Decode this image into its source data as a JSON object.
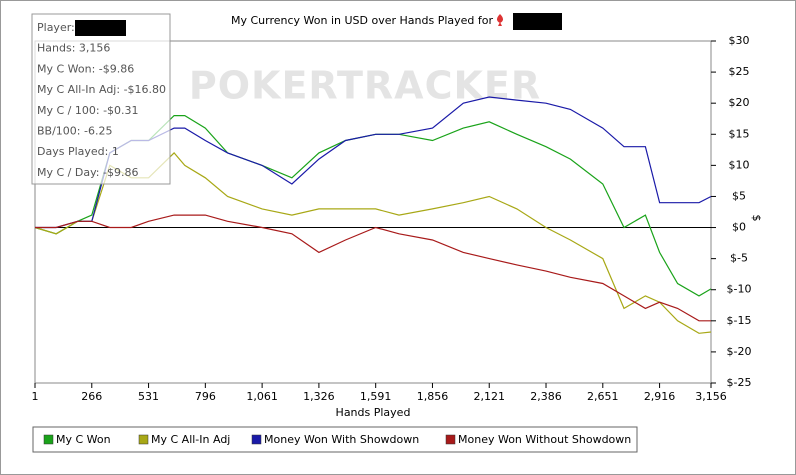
{
  "chart_data": {
    "type": "line",
    "title": "My Currency Won in USD over Hands Played for",
    "watermark": "POKERTRACKER",
    "x_label": "Hands Played",
    "y_label": "$",
    "info": [
      "Player:",
      "Hands: 3,156",
      "My C Won: -$9.86",
      "My C All-In Adj: -$16.80",
      "My C / 100: -$0.31",
      "BB/100: -6.25",
      "Days Played: 1",
      "My C / Day: -$9.86"
    ],
    "x": [
      1,
      100,
      200,
      266,
      350,
      450,
      531,
      650,
      700,
      796,
      900,
      1061,
      1200,
      1326,
      1450,
      1591,
      1700,
      1856,
      2000,
      2121,
      2250,
      2386,
      2500,
      2651,
      2750,
      2850,
      2916,
      3000,
      3100,
      3156
    ],
    "series": [
      {
        "name": "My C Won",
        "color": "#1aa31a",
        "values": [
          0,
          -1,
          1,
          2,
          12,
          14,
          14,
          18,
          18,
          16,
          12,
          10,
          8,
          12,
          14,
          15,
          15,
          14,
          16,
          17,
          15,
          13,
          11,
          7,
          0,
          2,
          -4,
          -9,
          -11,
          -9.86
        ]
      },
      {
        "name": "My C All-In Adj",
        "color": "#a8a816",
        "values": [
          0,
          -1,
          1,
          1,
          10,
          8,
          8,
          12,
          10,
          8,
          5,
          3,
          2,
          3,
          3,
          3,
          2,
          3,
          4,
          5,
          3,
          0,
          -2,
          -5,
          -13,
          -11,
          -12,
          -15,
          -17,
          -16.8
        ]
      },
      {
        "name": "Money Won With Showdown",
        "color": "#1a1aa8",
        "values": [
          0,
          0,
          1,
          1,
          12,
          14,
          14,
          16,
          16,
          14,
          12,
          10,
          7,
          11,
          14,
          15,
          15,
          16,
          20,
          21,
          20.5,
          20,
          19,
          16,
          13,
          13,
          4,
          4,
          4,
          5
        ]
      },
      {
        "name": "Money Won Without Showdown",
        "color": "#a81a1a",
        "values": [
          0,
          0,
          1,
          1,
          0,
          0,
          1,
          2,
          2,
          2,
          1,
          0,
          -1,
          -4,
          -2,
          0,
          -1,
          -2,
          -4,
          -5,
          -6,
          -7,
          -8,
          -9,
          -11,
          -13,
          -12,
          -13,
          -15,
          -15
        ]
      }
    ],
    "xlim": [
      1,
      3156
    ],
    "xticks": [
      1,
      266,
      531,
      796,
      {
        "value": 1061,
        "label": "1,061"
      },
      {
        "value": 1326,
        "label": "1,326"
      },
      {
        "value": 1591,
        "label": "1,591"
      },
      {
        "value": 1856,
        "label": "1,856"
      },
      {
        "value": 2121,
        "label": "2,121"
      },
      {
        "value": 2386,
        "label": "2,386"
      },
      {
        "value": 2651,
        "label": "2,651"
      },
      {
        "value": 2916,
        "label": "2,916"
      },
      {
        "value": 3156,
        "label": "3,156"
      }
    ],
    "ylim": [
      -25,
      30
    ],
    "yticks": [
      {
        "value": 30,
        "label": "$30"
      },
      {
        "value": 25,
        "label": "$25"
      },
      {
        "value": 20,
        "label": "$20"
      },
      {
        "value": 15,
        "label": "$15"
      },
      {
        "value": 10,
        "label": "$10"
      },
      {
        "value": 5,
        "label": "$5"
      },
      {
        "value": 0,
        "label": "$0"
      },
      {
        "value": -5,
        "label": "$-5"
      },
      {
        "value": -10,
        "label": "$-10"
      },
      {
        "value": -15,
        "label": "$-15"
      },
      {
        "value": -20,
        "label": "$-20"
      },
      {
        "value": -25,
        "label": "$-25"
      }
    ]
  }
}
